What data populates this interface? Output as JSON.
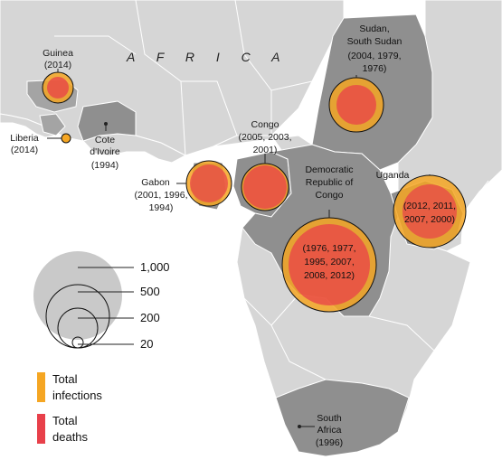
{
  "map": {
    "region_label": "A F R I C A",
    "colors": {
      "land": "#d6d6d6",
      "highlight": "#8f8f8f",
      "border": "#ffffff",
      "infections": "#f5a623",
      "deaths": "#e8404a"
    },
    "outbreaks": [
      {
        "id": "guinea",
        "country": "Guinea",
        "years": "(2014)"
      },
      {
        "id": "liberia",
        "country": "Liberia",
        "years": "(2014)"
      },
      {
        "id": "cote",
        "country_line1": "Cote",
        "country_line2": "d'Ivoire",
        "years": "(1994)"
      },
      {
        "id": "gabon",
        "country": "Gabon",
        "years_line1": "(2001, 1996,",
        "years_line2": "1994)"
      },
      {
        "id": "congo",
        "country": "Congo",
        "years_line1": "(2005, 2003,",
        "years_line2": "2001)"
      },
      {
        "id": "sudan",
        "country_line1": "Sudan,",
        "country_line2": "South Sudan",
        "years_line1": "(2004, 1979,",
        "years_line2": "1976)"
      },
      {
        "id": "drc",
        "country_line1": "Democratic",
        "country_line2": "Republic of",
        "country_line3": "Congo",
        "years_line1": "(1976, 1977,",
        "years_line2": "1995, 2007,",
        "years_line3": "2008, 2012)"
      },
      {
        "id": "uganda",
        "country": "Uganda",
        "years_line1": "(2012, 2011,",
        "years_line2": "2007, 2000)"
      },
      {
        "id": "south_africa",
        "country_line1": "South",
        "country_line2": "Africa",
        "years": "(1996)"
      }
    ]
  },
  "legend": {
    "size_values": [
      "1,000",
      "500",
      "200",
      "20"
    ],
    "infections_label_line1": "Total",
    "infections_label_line2": "infections",
    "deaths_label_line1": "Total",
    "deaths_label_line2": "deaths"
  }
}
